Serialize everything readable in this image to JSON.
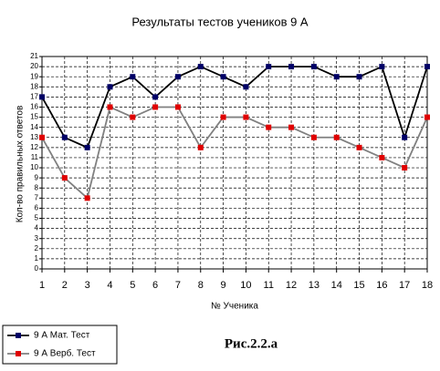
{
  "chart_data": {
    "type": "line",
    "title": "Результаты тестов учеников 9 А",
    "x_label": "№ Ученика",
    "y_label": "Кол-во правильных ответов",
    "caption": "Рис.2.2.а",
    "x": [
      1,
      2,
      3,
      4,
      5,
      6,
      7,
      8,
      9,
      10,
      11,
      12,
      13,
      14,
      15,
      16,
      17,
      18
    ],
    "xlim": [
      1,
      18
    ],
    "xticks": [
      1,
      2,
      3,
      4,
      5,
      6,
      7,
      8,
      9,
      10,
      11,
      12,
      13,
      14,
      15,
      16,
      17,
      18
    ],
    "ylim": [
      0,
      21
    ],
    "yticks": [
      0,
      1,
      2,
      3,
      4,
      5,
      6,
      7,
      8,
      9,
      10,
      11,
      12,
      13,
      14,
      15,
      16,
      17,
      18,
      19,
      20,
      21
    ],
    "grid": true,
    "series": [
      {
        "name": "9 А Мат. Тест",
        "color": "#000000",
        "marker_color": "#000066",
        "values": [
          17,
          13,
          12,
          18,
          19,
          17,
          19,
          20,
          19,
          18,
          20,
          20,
          20,
          19,
          19,
          20,
          13,
          20
        ]
      },
      {
        "name": "9 А Верб. Тест",
        "color": "#808080",
        "marker_color": "#e00000",
        "values": [
          13,
          9,
          7,
          16,
          15,
          16,
          16,
          12,
          15,
          15,
          14,
          14,
          13,
          13,
          12,
          11,
          10,
          15
        ]
      }
    ]
  }
}
